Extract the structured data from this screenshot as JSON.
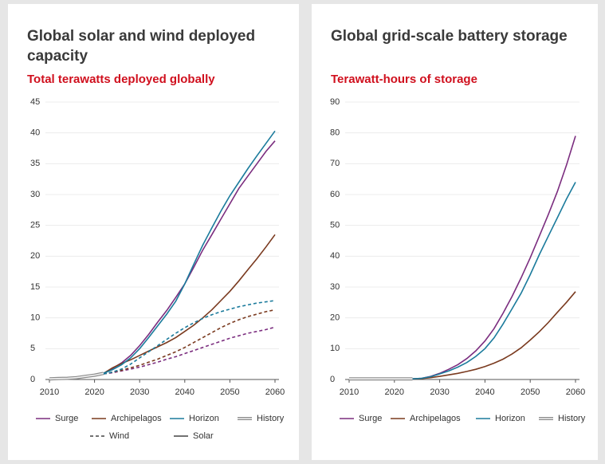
{
  "chart_data": [
    {
      "type": "line",
      "title": "Global solar and wind deployed capacity",
      "subtitle": "Total terawatts deployed globally",
      "x": [
        2010,
        2012,
        2014,
        2016,
        2018,
        2020,
        2022,
        2024,
        2026,
        2028,
        2030,
        2032,
        2034,
        2036,
        2038,
        2040,
        2042,
        2044,
        2046,
        2048,
        2050,
        2052,
        2054,
        2056,
        2058,
        2060
      ],
      "xlim": [
        2010,
        2060
      ],
      "xticks": [
        2010,
        2020,
        2030,
        2040,
        2050,
        2060
      ],
      "ylim": [
        0,
        45
      ],
      "yticks": [
        0,
        5,
        10,
        15,
        20,
        25,
        30,
        35,
        40,
        45
      ],
      "grid": true,
      "line_styles": [
        {
          "name": "Wind",
          "dashed": true
        },
        {
          "name": "Solar",
          "dashed": false
        }
      ],
      "series": [
        {
          "name": "Surge",
          "color": "#7b2d7f",
          "lines": [
            {
              "style": "Wind",
              "values": [
                null,
                null,
                null,
                null,
                null,
                null,
                0.9,
                1.1,
                1.4,
                1.7,
                2.0,
                2.4,
                2.8,
                3.3,
                3.7,
                4.2,
                4.7,
                5.2,
                5.7,
                6.2,
                6.7,
                7.1,
                7.5,
                7.8,
                8.1,
                8.5
              ]
            },
            {
              "style": "Solar",
              "values": [
                null,
                null,
                null,
                null,
                null,
                null,
                1.0,
                1.8,
                2.7,
                3.9,
                5.5,
                7.3,
                9.3,
                11.2,
                13.3,
                15.5,
                18.2,
                21.0,
                23.5,
                26.0,
                28.5,
                31.0,
                33.0,
                35.0,
                37.0,
                38.7
              ]
            }
          ]
        },
        {
          "name": "Archipelagos",
          "color": "#7a3a1f",
          "lines": [
            {
              "style": "Wind",
              "values": [
                null,
                null,
                null,
                null,
                null,
                null,
                0.9,
                1.2,
                1.5,
                1.9,
                2.3,
                2.8,
                3.3,
                3.9,
                4.5,
                5.2,
                6.0,
                6.8,
                7.6,
                8.4,
                9.1,
                9.7,
                10.2,
                10.6,
                11.0,
                11.3
              ]
            },
            {
              "style": "Solar",
              "values": [
                null,
                null,
                null,
                null,
                null,
                null,
                1.0,
                1.9,
                2.6,
                3.2,
                3.9,
                4.6,
                5.3,
                6.0,
                6.8,
                7.8,
                8.8,
                10.0,
                11.3,
                12.8,
                14.3,
                16.0,
                17.8,
                19.6,
                21.5,
                23.5
              ]
            }
          ]
        },
        {
          "name": "Horizon",
          "color": "#1b7b9c",
          "lines": [
            {
              "style": "Wind",
              "values": [
                null,
                null,
                null,
                null,
                null,
                null,
                0.9,
                1.2,
                1.7,
                2.5,
                3.5,
                4.5,
                5.5,
                6.5,
                7.5,
                8.4,
                9.2,
                9.9,
                10.5,
                11.0,
                11.4,
                11.8,
                12.1,
                12.4,
                12.6,
                12.8
              ]
            },
            {
              "style": "Solar",
              "values": [
                null,
                null,
                null,
                null,
                null,
                null,
                1.0,
                1.6,
                2.4,
                3.5,
                5.0,
                6.8,
                8.7,
                10.6,
                12.7,
                15.5,
                18.7,
                21.8,
                24.6,
                27.3,
                29.8,
                32.0,
                34.2,
                36.3,
                38.3,
                40.3
              ]
            }
          ]
        },
        {
          "name": "History",
          "color": "#8c8c8c",
          "lines": [
            {
              "style": "Solar",
              "values": [
                0.1,
                0.15,
                0.2,
                0.3,
                0.5,
                0.7,
                1.0,
                null,
                null,
                null,
                null,
                null,
                null,
                null,
                null,
                null,
                null,
                null,
                null,
                null,
                null,
                null,
                null,
                null,
                null,
                null
              ]
            }
          ]
        }
      ]
    },
    {
      "type": "line",
      "title": "Global grid-scale battery storage",
      "subtitle": "Terawatt-hours of storage",
      "x": [
        2010,
        2012,
        2014,
        2016,
        2018,
        2020,
        2022,
        2024,
        2026,
        2028,
        2030,
        2032,
        2034,
        2036,
        2038,
        2040,
        2042,
        2044,
        2046,
        2048,
        2050,
        2052,
        2054,
        2056,
        2058,
        2060
      ],
      "xlim": [
        2010,
        2060
      ],
      "xticks": [
        2010,
        2020,
        2030,
        2040,
        2050,
        2060
      ],
      "ylim": [
        0,
        90
      ],
      "yticks": [
        0,
        10,
        20,
        30,
        40,
        50,
        60,
        70,
        80,
        90
      ],
      "grid": true,
      "series": [
        {
          "name": "Surge",
          "color": "#7b2d7f",
          "values": [
            null,
            null,
            null,
            null,
            null,
            null,
            null,
            0.2,
            0.4,
            1.0,
            2.0,
            3.3,
            4.8,
            6.8,
            9.3,
            12.5,
            16.5,
            21.5,
            27,
            33,
            39.5,
            46.5,
            53.5,
            61,
            69.5,
            79
          ]
        },
        {
          "name": "Archipelagos",
          "color": "#7a3a1f",
          "values": [
            null,
            null,
            null,
            null,
            null,
            null,
            null,
            0.2,
            0.3,
            0.6,
            1.0,
            1.5,
            2.0,
            2.6,
            3.3,
            4.2,
            5.3,
            6.6,
            8.3,
            10.3,
            12.8,
            15.5,
            18.5,
            21.8,
            25,
            28.5
          ]
        },
        {
          "name": "Horizon",
          "color": "#1b7b9c",
          "values": [
            null,
            null,
            null,
            null,
            null,
            null,
            null,
            0.2,
            0.4,
            0.9,
            1.8,
            2.8,
            4.0,
            5.5,
            7.5,
            10,
            13.5,
            18,
            23,
            28,
            34,
            40.5,
            46.5,
            52.5,
            58.5,
            64
          ]
        },
        {
          "name": "History",
          "color": "#8c8c8c",
          "values": [
            0.2,
            0.2,
            0.2,
            0.2,
            0.2,
            0.2,
            0.2,
            0.2,
            null,
            null,
            null,
            null,
            null,
            null,
            null,
            null,
            null,
            null,
            null,
            null,
            null,
            null,
            null,
            null,
            null,
            null
          ]
        }
      ]
    }
  ]
}
